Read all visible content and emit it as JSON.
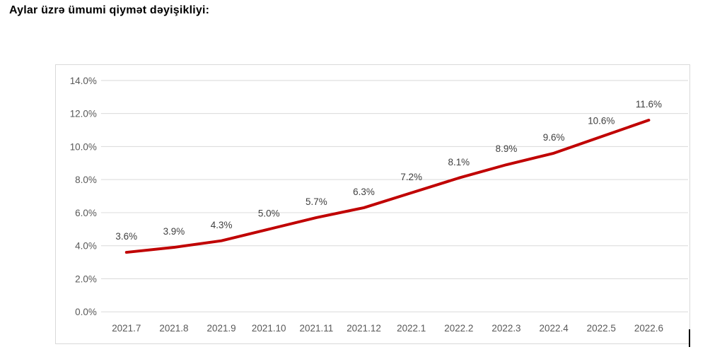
{
  "page": {
    "title": "Aylar üzrə ümumi qiymət dəyişikliyi:"
  },
  "chart_data": {
    "type": "line",
    "title": "",
    "categories": [
      "2021.7",
      "2021.8",
      "2021.9",
      "2021.10",
      "2021.11",
      "2021.12",
      "2022.1",
      "2022.2",
      "2022.3",
      "2022.4",
      "2022.5",
      "2022.6"
    ],
    "values": [
      3.6,
      3.9,
      4.3,
      5.0,
      5.7,
      6.3,
      7.2,
      8.1,
      8.9,
      9.6,
      10.6,
      11.6
    ],
    "data_labels": [
      "3.6%",
      "3.9%",
      "4.3%",
      "5.0%",
      "5.7%",
      "6.3%",
      "7.2%",
      "8.1%",
      "8.9%",
      "9.6%",
      "10.6%",
      "11.6%"
    ],
    "y_ticks": [
      "0.0%",
      "2.0%",
      "4.0%",
      "6.0%",
      "8.0%",
      "10.0%",
      "12.0%",
      "14.0%"
    ],
    "xlabel": "",
    "ylabel": "",
    "ylim": [
      0,
      14
    ],
    "grid": true,
    "legend_position": "none",
    "colors": {
      "line": "#c00000",
      "grid": "#d9d9d9",
      "axis_text": "#595959",
      "label_text": "#404040",
      "frame_border": "#d9d9d9"
    }
  },
  "caret": {
    "visible": true
  }
}
